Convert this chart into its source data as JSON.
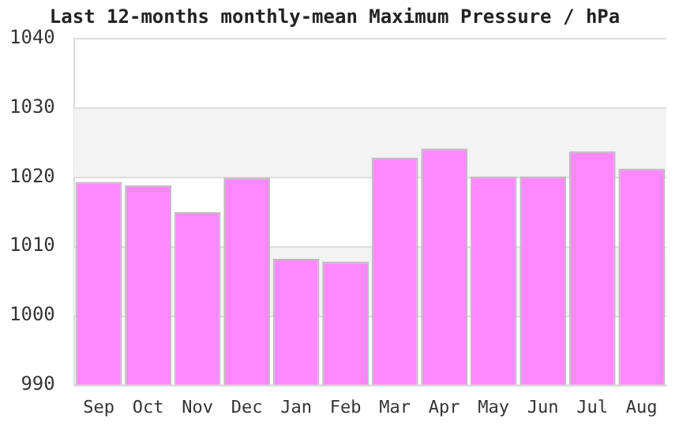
{
  "chart_data": {
    "type": "bar",
    "title": "Last 12-months monthly-mean Maximum Pressure / hPa",
    "categories": [
      "Sep",
      "Oct",
      "Nov",
      "Dec",
      "Jan",
      "Feb",
      "Mar",
      "Apr",
      "May",
      "Jun",
      "Jul",
      "Aug"
    ],
    "values": [
      1019.3,
      1018.8,
      1014.9,
      1019.9,
      1008.2,
      1007.8,
      1022.8,
      1024.1,
      1020.1,
      1020.1,
      1023.7,
      1021.2
    ],
    "color": "#ff88ff",
    "ylim": [
      990,
      1040
    ],
    "yticks": [
      990,
      1000,
      1010,
      1020,
      1030,
      1040
    ],
    "grid": "y",
    "legend": false
  }
}
